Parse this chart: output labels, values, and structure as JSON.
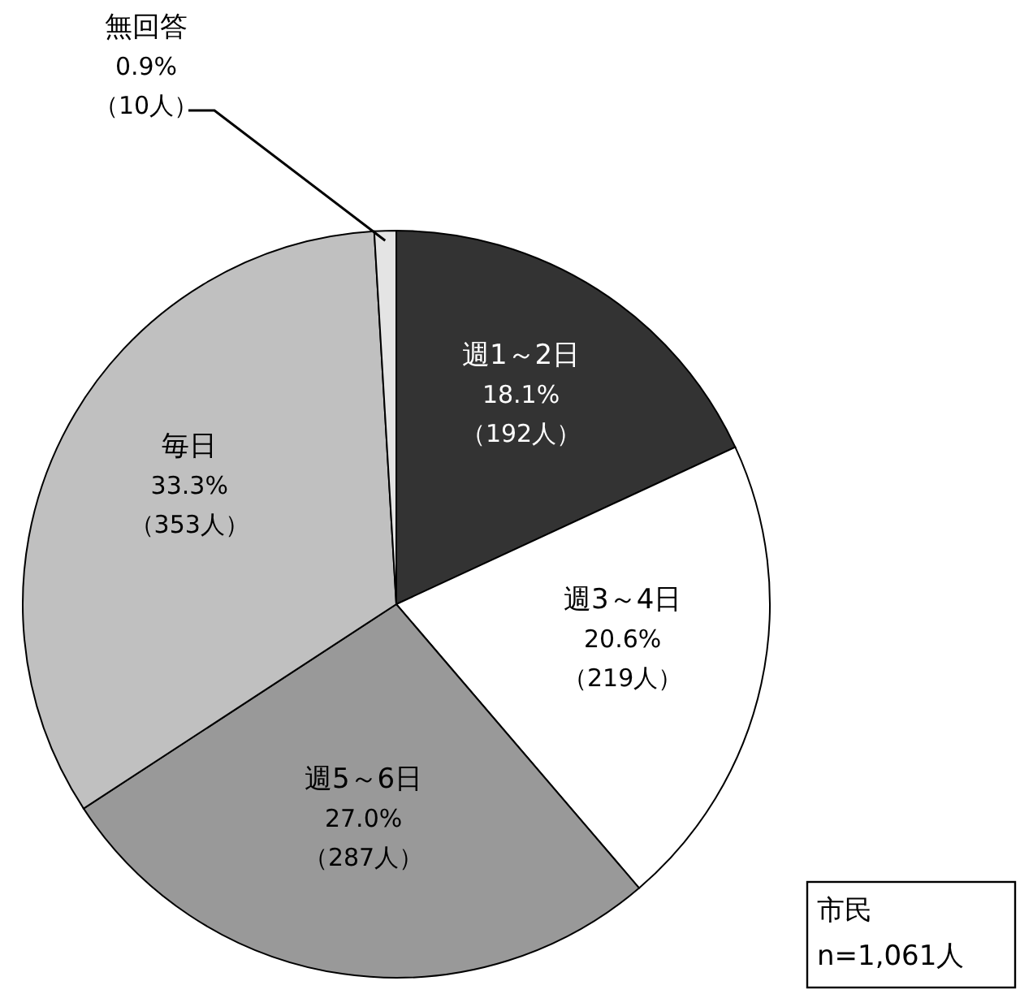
{
  "chart_data": {
    "type": "pie",
    "categories": [
      "週1～2日",
      "週3～4日",
      "週5～6日",
      "毎日",
      "無回答"
    ],
    "values": [
      192,
      219,
      287,
      353,
      10
    ],
    "colors": [
      "#333333",
      "#ffffff",
      "#999999",
      "#c0c0c0",
      "#e4e4e4"
    ],
    "value_labels": [
      "18.1%\n（192人）",
      "20.6%\n（219人）",
      "27.0%\n（287人）",
      "33.3%\n（353人）",
      "0.9%\n（10人）"
    ],
    "annotations": [
      "市民\nn=1,061人"
    ]
  }
}
